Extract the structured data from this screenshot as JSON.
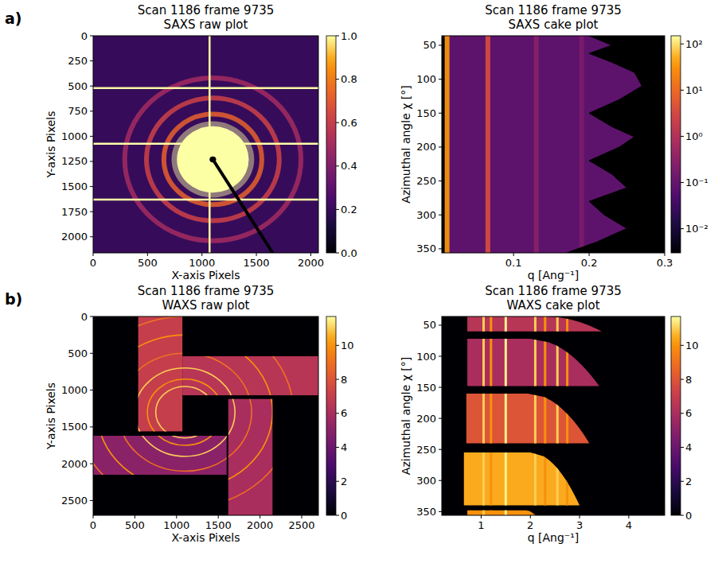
{
  "chart_data": [
    {
      "type": "heatmap",
      "panel_label": "a)",
      "title": [
        "Scan 1186 frame 9735",
        "SAXS raw plot"
      ],
      "x_label": "X-axis Pixels",
      "y_label": "Y-axis Pixels",
      "xlim": [
        0,
        2070
      ],
      "ylim": [
        0,
        2160
      ],
      "xticks": [
        0,
        500,
        1000,
        1500,
        2000
      ],
      "yticks": [
        0,
        250,
        500,
        750,
        1000,
        1250,
        1500,
        1750,
        2000
      ],
      "colorbar": {
        "lim": [
          0,
          1
        ],
        "log": false,
        "ticks": [
          {
            "value": 0,
            "label": "0.0"
          },
          {
            "value": 0.2,
            "label": "0.2"
          },
          {
            "value": 0.4,
            "label": "0.4"
          },
          {
            "value": 0.6,
            "label": "0.6"
          },
          {
            "value": 0.8,
            "label": "0.8"
          },
          {
            "value": 1,
            "label": "1.0"
          }
        ]
      },
      "image": {
        "background": 0.2,
        "center": [
          1100,
          1230
        ],
        "rings": [
          {
            "radius": 330,
            "level": 1.0,
            "fill": true
          },
          {
            "radius": 450,
            "level": 0.72
          },
          {
            "radius": 610,
            "level": 0.62
          },
          {
            "radius": 810,
            "level": 0.5
          }
        ],
        "gaps_x": [
          1070
        ],
        "gaps_y": [
          520,
          1075,
          1630
        ],
        "gap_level": 1.0,
        "beamstop": {
          "radius": 30,
          "end": [
            1650,
            2160
          ]
        }
      }
    },
    {
      "type": "heatmap",
      "title": [
        "Scan 1186 frame 9735",
        "SAXS cake plot"
      ],
      "x_label": "q [Ang⁻¹]",
      "y_label": "Azimuthal angle χ [°]",
      "xlim": [
        0.005,
        0.3
      ],
      "ylim": [
        36,
        356
      ],
      "xticks": [
        0.1,
        0.2,
        0.3
      ],
      "yticks": [
        50,
        100,
        150,
        200,
        250,
        300,
        350
      ],
      "colorbar": {
        "lim": [
          0.003,
          150
        ],
        "log": true,
        "ticks": [
          {
            "value": 0.01,
            "label": "10⁻²"
          },
          {
            "value": 0.1,
            "label": "10⁻¹"
          },
          {
            "value": 1,
            "label": "10⁰"
          },
          {
            "value": 10,
            "label": "10¹"
          },
          {
            "value": 100,
            "label": "10²"
          }
        ]
      },
      "image": {
        "background": 0.08,
        "q_min": 0.009,
        "bands": [
          {
            "q": 0.012,
            "level": 40
          },
          {
            "q": 0.066,
            "level": 4
          },
          {
            "q": 0.13,
            "level": 0.3
          },
          {
            "q": 0.19,
            "level": 0.2
          }
        ],
        "mask_edge": {
          "chi": [
            36,
            50,
            62,
            75,
            90,
            110,
            130,
            150,
            170,
            185,
            200,
            220,
            240,
            260,
            280,
            300,
            320,
            340,
            356
          ],
          "q": [
            0.2,
            0.23,
            0.2,
            0.23,
            0.26,
            0.27,
            0.24,
            0.2,
            0.23,
            0.26,
            0.24,
            0.2,
            0.23,
            0.25,
            0.2,
            0.22,
            0.25,
            0.21,
            0.17
          ]
        }
      }
    },
    {
      "type": "heatmap",
      "panel_label": "b)",
      "title": [
        "Scan 1186 frame 9735",
        "WAXS raw plot"
      ],
      "x_label": "X-axis Pixels",
      "y_label": "Y-axis Pixels",
      "xlim": [
        0,
        2700
      ],
      "ylim": [
        0,
        2700
      ],
      "xticks": [
        0,
        500,
        1000,
        1500,
        2000,
        2500
      ],
      "yticks": [
        0,
        500,
        1000,
        1500,
        2000,
        2500
      ],
      "colorbar": {
        "lim": [
          0,
          11.7
        ],
        "log": false,
        "ticks": [
          0,
          2,
          4,
          6,
          8,
          10
        ]
      },
      "image": {
        "background": 0,
        "center": [
          1100,
          1300
        ],
        "modules": [
          {
            "x": [
              540,
              1070
            ],
            "y": [
              0,
              1560
            ],
            "level": 7
          },
          {
            "x": [
              1070,
              2700
            ],
            "y": [
              540,
              1070
            ],
            "level": 6.5
          },
          {
            "x": [
              1620,
              2150
            ],
            "y": [
              1120,
              2700
            ],
            "level": 6
          },
          {
            "x": [
              0,
              1600
            ],
            "y": [
              1620,
              2150
            ],
            "level": 5
          }
        ],
        "rings": [
          {
            "radius": 350,
            "level": 11
          },
          {
            "radius": 450,
            "level": 10
          },
          {
            "radius": 600,
            "level": 11
          },
          {
            "radius": 800,
            "level": 9
          },
          {
            "radius": 1050,
            "level": 10
          },
          {
            "radius": 1300,
            "level": 9
          }
        ]
      }
    },
    {
      "type": "heatmap",
      "title": [
        "Scan 1186 frame 9735",
        "WAXS cake plot"
      ],
      "x_label": "q [Ang⁻¹]",
      "y_label": "Azimuthal angle χ [°]",
      "xlim": [
        0.2,
        4.73
      ],
      "ylim": [
        36,
        356
      ],
      "xticks": [
        1,
        2,
        3,
        4
      ],
      "yticks": [
        50,
        100,
        150,
        200,
        250,
        300,
        350
      ],
      "colorbar": {
        "lim": [
          0,
          11.7
        ],
        "log": false,
        "ticks": [
          0,
          2,
          4,
          6,
          8,
          10
        ]
      },
      "image": {
        "background": 0,
        "segments": [
          {
            "chi": [
              36,
              60
            ],
            "q": [
              0.72,
              2.3,
              3.45
            ],
            "level": 6.5
          },
          {
            "chi": [
              72,
              148
            ],
            "q": [
              0.72,
              2.0,
              3.4
            ],
            "level": 6
          },
          {
            "chi": [
              160,
              240
            ],
            "q": [
              0.7,
              1.95,
              3.2
            ],
            "level": 8
          },
          {
            "chi": [
              255,
              340
            ],
            "q": [
              0.65,
              2.0,
              3.0
            ],
            "level": 10.5
          },
          {
            "chi": [
              348,
              356
            ],
            "q": [
              0.72,
              1.9,
              2.1
            ],
            "level": 10
          }
        ],
        "lines": [
          {
            "q": 1.05,
            "level": 11
          },
          {
            "q": 1.2,
            "level": 10
          },
          {
            "q": 1.5,
            "level": 11.5
          },
          {
            "q": 2.1,
            "level": 11
          },
          {
            "q": 2.3,
            "level": 10
          },
          {
            "q": 2.55,
            "level": 11
          },
          {
            "q": 2.75,
            "level": 10
          }
        ]
      }
    }
  ]
}
